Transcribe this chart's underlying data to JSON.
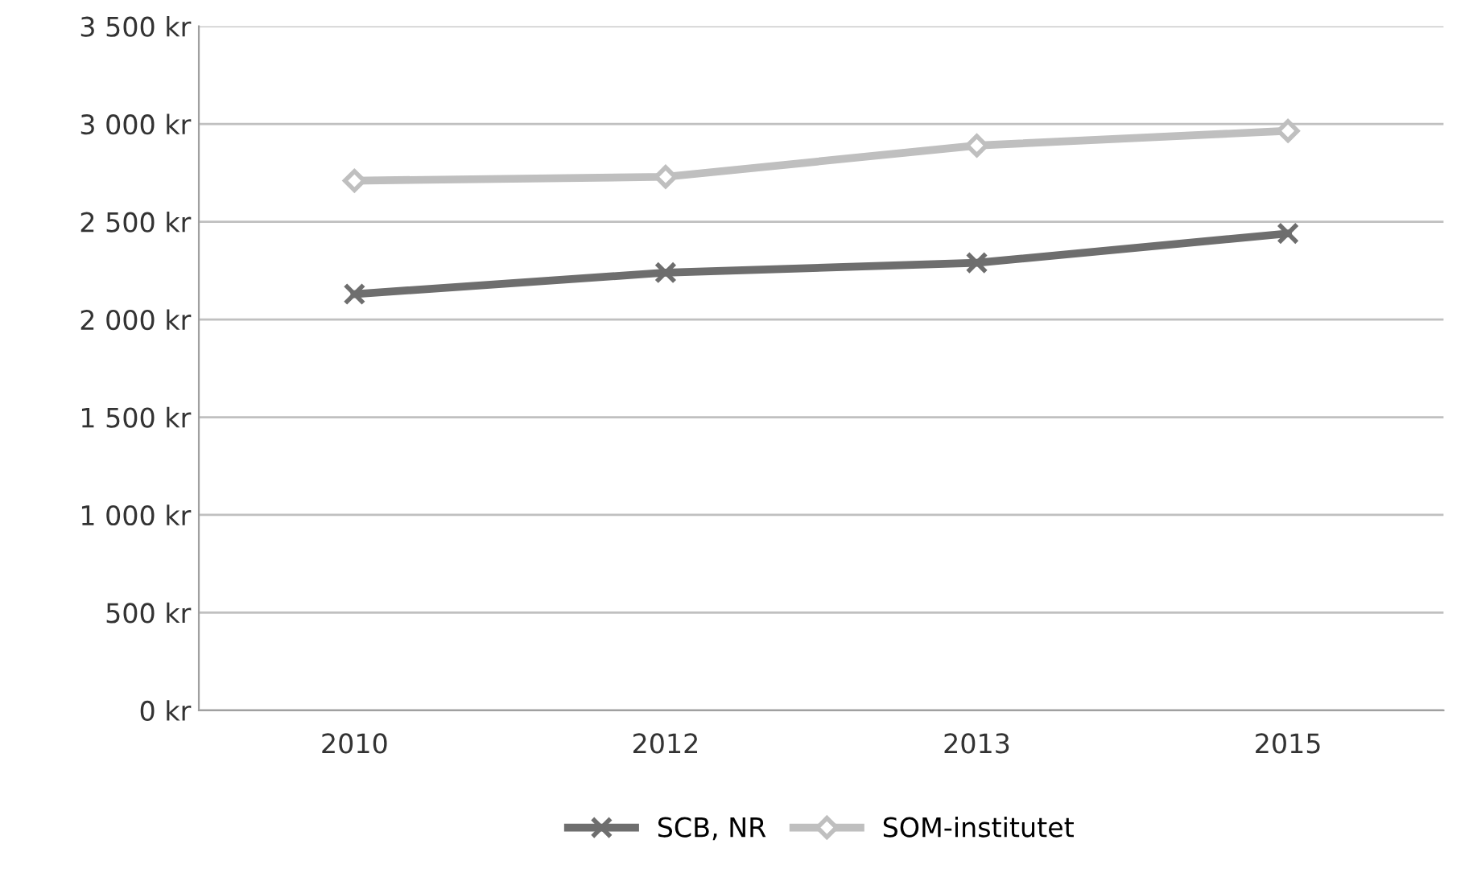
{
  "chart_data": {
    "type": "line",
    "categories": [
      "2010",
      "2012",
      "2013",
      "2015"
    ],
    "series": [
      {
        "name": "SCB, NR",
        "color": "#6e6e6e",
        "marker": "cross",
        "values": [
          2130,
          2240,
          2290,
          2440
        ]
      },
      {
        "name": "SOM-institutet",
        "color": "#bfbfbf",
        "marker": "diamond",
        "values": [
          2710,
          2730,
          2890,
          2965
        ]
      }
    ],
    "ylim": [
      0,
      3500
    ],
    "yticks": [
      {
        "value": 0,
        "label": "0 kr"
      },
      {
        "value": 500,
        "label": "500 kr"
      },
      {
        "value": 1000,
        "label": "1 000 kr"
      },
      {
        "value": 1500,
        "label": "1 500 kr"
      },
      {
        "value": 2000,
        "label": "2 000 kr"
      },
      {
        "value": 2500,
        "label": "2 500 kr"
      },
      {
        "value": 3000,
        "label": "3 000 kr"
      },
      {
        "value": 3500,
        "label": "3 500 kr"
      }
    ],
    "grid": "y",
    "legend": "bottom",
    "line_style": "solid"
  }
}
